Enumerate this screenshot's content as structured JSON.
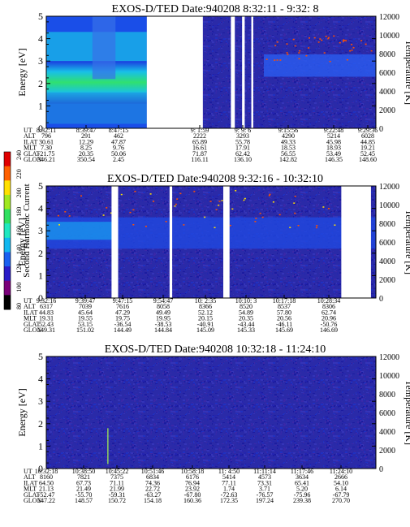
{
  "colors": {
    "background_noise": "#2a2aa8",
    "low_band": "#1030d8",
    "mid_band": "#20a8e0",
    "high_band": "#30d860",
    "gap": "#ffffff",
    "sparkle": "#ff5000"
  },
  "colorbar": {
    "label": "Second Harmonic Current",
    "ticks": [
      "80",
      "100",
      "120",
      "140",
      "160",
      "180",
      "200",
      "220",
      "240"
    ],
    "colors": [
      "#000000",
      "#7a007a",
      "#2a1cc8",
      "#1a60f0",
      "#12b8f0",
      "#20e8c0",
      "#30e060",
      "#a0e820",
      "#ffe000",
      "#ff6000",
      "#e00000"
    ]
  },
  "charts": [
    {
      "title": "EXOS-D/TED   Date:940208  8:32:11 - 9:32: 8",
      "ylabel": "Energy [eV]",
      "y2label": "Temperature [K]",
      "yticks": [
        "0",
        "1",
        "2",
        "3",
        "4",
        "5"
      ],
      "y2ticks": [
        "0",
        "2000",
        "4000",
        "6000",
        "8000",
        "10000",
        "12000"
      ],
      "row_labels": [
        "UT",
        "ALT",
        "ILAT",
        "MLT",
        "GLAT",
        "GLON"
      ],
      "columns": [
        [
          "8:32:11",
          "796",
          "30.61",
          "7.30",
          "-21.75",
          "346.21"
        ],
        [
          "8:39:47",
          "291",
          "12.29",
          "8.25",
          "20.35",
          "350.54"
        ],
        [
          "8:47:15",
          "462",
          "47.87",
          "9.76",
          "50.06",
          "2.45"
        ],
        [
          "9: 1:59",
          "2222",
          "65.89",
          "16.61",
          "71.87",
          "116.11"
        ],
        [
          "9: 9: 6",
          "3293",
          "55.78",
          "17.91",
          "62.42",
          "136.10"
        ],
        [
          "9:15:56",
          "4290",
          "49.33",
          "18.53",
          "56.55",
          "142.82"
        ],
        [
          "9:22:48",
          "5214",
          "45.98",
          "18.93",
          "53.49",
          "146.35"
        ],
        [
          "9:29:36",
          "6028",
          "44.85",
          "19.21",
          "52.45",
          "148.60"
        ]
      ]
    },
    {
      "title": "EXOS-D/TED   Date:940208  9:32:16 - 10:32:10",
      "ylabel": "Energy [eV]",
      "y2label": "Temperature [K]",
      "yticks": [
        "0",
        "1",
        "2",
        "3",
        "4",
        "5"
      ],
      "y2ticks": [
        "0",
        "2000",
        "4000",
        "6000",
        "8000",
        "10000",
        "12000"
      ],
      "row_labels": [
        "UT",
        "ALT",
        "ILAT",
        "MLT",
        "GLAT",
        "GLON"
      ],
      "columns": [
        [
          "9:32:16",
          "6317",
          "44.83",
          "19.31",
          "52.43",
          "149.31"
        ],
        [
          "9:39:47",
          "7039",
          "45.64",
          "19.55",
          "53.15",
          "151.02"
        ],
        [
          "9:47:15",
          "7616",
          "47.29",
          "19.75",
          "-36.54",
          "144.49"
        ],
        [
          "9:54:47",
          "8058",
          "49.49",
          "19.95",
          "-38.53",
          "144.84"
        ],
        [
          "10: 2:35",
          "8366",
          "52.12",
          "20.15",
          "-40.91",
          "145.09"
        ],
        [
          "10:10: 3",
          "8520",
          "54.89",
          "20.35",
          "-43.44",
          "145.33"
        ],
        [
          "10:17:18",
          "8537",
          "57.80",
          "20.56",
          "-46.11",
          "145.69"
        ],
        [
          "10:28:34",
          "8306",
          "62.74",
          "20.96",
          "-50.76",
          "146.69"
        ]
      ]
    },
    {
      "title": "EXOS-D/TED   Date:940208  10:32:18 - 11:24:10",
      "ylabel": "Energy [eV]",
      "y2label": "Temperature [K]",
      "yticks": [
        "0",
        "1",
        "2",
        "3",
        "4",
        "5"
      ],
      "y2ticks": [
        "0",
        "2000",
        "4000",
        "6000",
        "8000",
        "10000",
        "12000"
      ],
      "row_labels": [
        "UT",
        "ALT",
        "ILAT",
        "MLT",
        "GLAT",
        "GLON"
      ],
      "columns": [
        [
          "10:32:18",
          "8160",
          "64.50",
          "21.13",
          "-52.47",
          "147.22"
        ],
        [
          "10:38:50",
          "7821",
          "67.73",
          "21.49",
          "-55.70",
          "148.57"
        ],
        [
          "10:45:22",
          "7375",
          "71.11",
          "21.99",
          "-59.31",
          "150.72"
        ],
        [
          "10:51:46",
          "6834",
          "74.36",
          "22.72",
          "-63.27",
          "154.18"
        ],
        [
          "10:58:18",
          "6176",
          "76.94",
          "23.92",
          "-67.80",
          "160.36"
        ],
        [
          "11: 4:50",
          "5414",
          "77.11",
          "1.74",
          "-72.63",
          "172.35"
        ],
        [
          "11:11:14",
          "4573",
          "73.31",
          "3.71",
          "-76.57",
          "197.24"
        ],
        [
          "11:17:46",
          "3634",
          "65.41",
          "5.20",
          "-75.96",
          "239.38"
        ],
        [
          "11:24:10",
          "2666",
          "54.10",
          "6.14",
          "-67.79",
          "270.70"
        ]
      ]
    }
  ],
  "chart_data": [
    {
      "type": "heatmap",
      "title": "EXOS-D/TED   Date:940208  8:32:11 - 9:32: 8",
      "x_start": "8:32:11",
      "x_end": "9:32: 8",
      "ylabel": "Energy [eV]",
      "ylim": [
        0,
        5
      ],
      "y2label": "Temperature [K]",
      "y2lim": [
        0,
        12000
      ],
      "data_gaps_fraction": [
        [
          0.305,
          0.475
        ],
        [
          0.56,
          0.572
        ],
        [
          0.594,
          0.602
        ],
        [
          0.622,
          0.628
        ]
      ]
    },
    {
      "type": "heatmap",
      "title": "EXOS-D/TED   Date:940208  9:32:16 - 10:32:10",
      "x_start": "9:32:16",
      "x_end": "10:32:10",
      "ylabel": "Energy [eV]",
      "ylim": [
        0,
        5
      ],
      "y2label": "Temperature [K]",
      "y2lim": [
        0,
        12000
      ],
      "data_gaps_fraction": [
        [
          0.198,
          0.218
        ],
        [
          0.374,
          0.382
        ],
        [
          0.537,
          0.556
        ],
        [
          0.895,
          0.985
        ]
      ]
    },
    {
      "type": "heatmap",
      "title": "EXOS-D/TED   Date:940208  10:32:18 - 11:24:10",
      "x_start": "10:32:18",
      "x_end": "11:24:10",
      "ylabel": "Energy [eV]",
      "ylim": [
        0,
        5
      ],
      "y2label": "Temperature [K]",
      "y2lim": [
        0,
        12000
      ],
      "data_gaps_fraction": []
    }
  ]
}
